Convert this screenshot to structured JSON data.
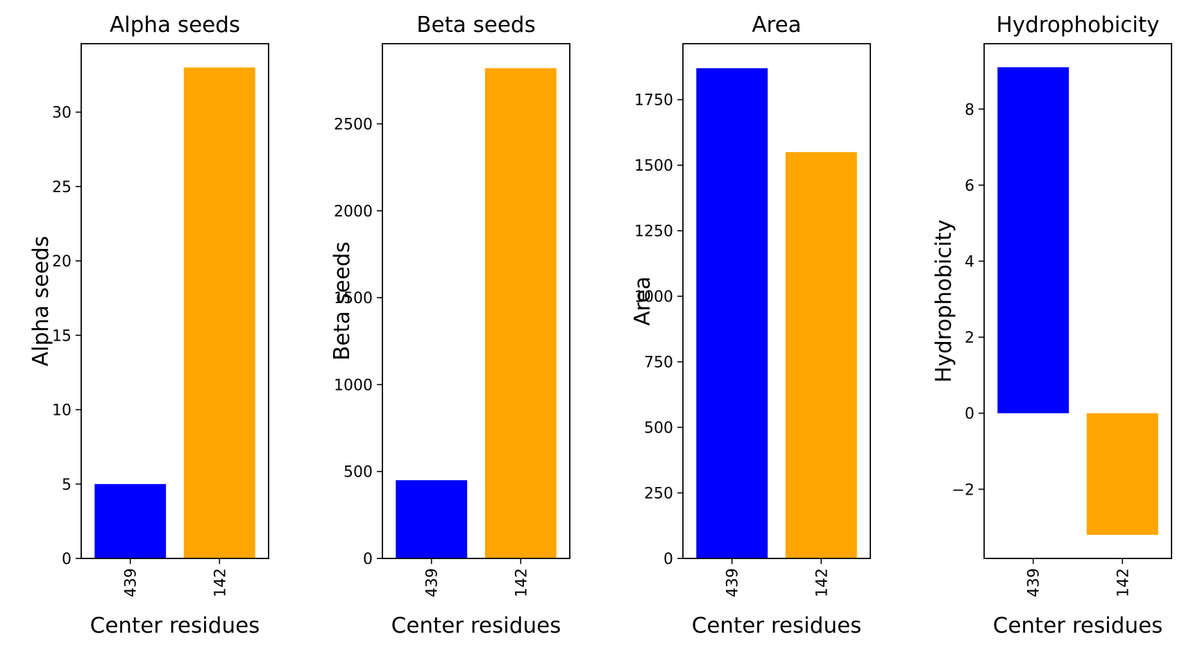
{
  "chart_data": [
    {
      "type": "bar",
      "title": "Alpha seeds",
      "xlabel": "Center residues",
      "ylabel": "Alpha seeds",
      "categories": [
        "439",
        "142"
      ],
      "values": [
        5,
        33
      ],
      "colors": [
        "#0000ff",
        "#ffa500"
      ],
      "ylim": [
        0,
        34.6
      ],
      "yticks": [
        0,
        5,
        10,
        15,
        20,
        25,
        30
      ],
      "ytick_labels": [
        "0",
        "5",
        "10",
        "15",
        "20",
        "25",
        "30"
      ]
    },
    {
      "type": "bar",
      "title": "Beta seeds",
      "xlabel": "Center residues",
      "ylabel": "Beta seeds",
      "categories": [
        "439",
        "142"
      ],
      "values": [
        450,
        2820
      ],
      "colors": [
        "#0000ff",
        "#ffa500"
      ],
      "ylim": [
        0,
        2961
      ],
      "yticks": [
        0,
        500,
        1000,
        1500,
        2000,
        2500
      ],
      "ytick_labels": [
        "0",
        "500",
        "1000",
        "1500",
        "2000",
        "2500"
      ]
    },
    {
      "type": "bar",
      "title": "Area",
      "xlabel": "Center residues",
      "ylabel": "Area",
      "categories": [
        "439",
        "142"
      ],
      "values": [
        1870,
        1550
      ],
      "colors": [
        "#0000ff",
        "#ffa500"
      ],
      "ylim": [
        0,
        1963.5
      ],
      "yticks": [
        0,
        250,
        500,
        750,
        1000,
        1250,
        1500,
        1750
      ],
      "ytick_labels": [
        "0",
        "250",
        "500",
        "750",
        "1000",
        "1250",
        "1500",
        "1750"
      ]
    },
    {
      "type": "bar",
      "title": "Hydrophobicity",
      "xlabel": "Center residues",
      "ylabel": "Hydrophobicity",
      "categories": [
        "439",
        "142"
      ],
      "values": [
        9.1,
        -3.2
      ],
      "colors": [
        "#0000ff",
        "#ffa500"
      ],
      "ylim": [
        -3.82,
        9.72
      ],
      "yticks": [
        -2,
        0,
        2,
        4,
        6,
        8
      ],
      "ytick_labels": [
        "−2",
        "0",
        "2",
        "4",
        "6",
        "8"
      ]
    }
  ]
}
